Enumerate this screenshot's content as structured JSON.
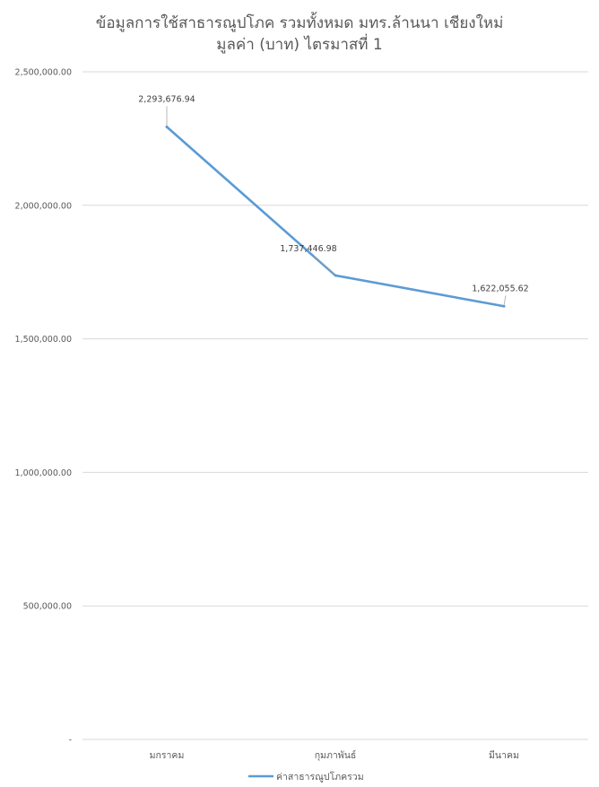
{
  "chart_data": {
    "type": "line",
    "title_line1": "ข้อมูลการใช้สาธารณูปโภค รวมทั้งหมด มทร.ล้านนา เชียงใหม่",
    "title_line2": "มูลค่า (บาท) ไตรมาสที่ 1",
    "categories": [
      "มกราคม",
      "กุมภาพันธ์",
      "มีนาคม"
    ],
    "series": [
      {
        "name": "ค่าสาธารณูปโภครวม",
        "values": [
          2293676.94,
          1737446.98,
          1622055.62
        ],
        "labels": [
          "2,293,676.94",
          "1,737,446.98",
          "1,622,055.62"
        ],
        "color": "#5b9bd5"
      }
    ],
    "ylim": [
      0,
      2500000
    ],
    "yticks": [
      0,
      500000,
      1000000,
      1500000,
      2000000,
      2500000
    ],
    "ytick_labels": [
      "-",
      "500,000.00",
      "1,000,000.00",
      "1,500,000.00",
      "2,000,000.00",
      "2,500,000.00"
    ],
    "grid": true,
    "gridline_color": "#d9d9d9",
    "legend_position": "bottom"
  }
}
